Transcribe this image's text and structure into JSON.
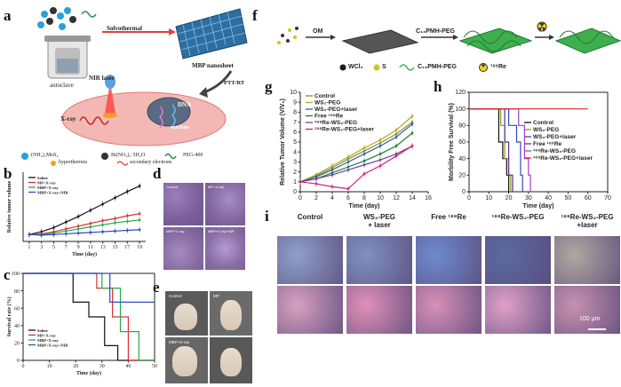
{
  "panels": {
    "a": "a",
    "b": "b",
    "c": "c",
    "d": "d",
    "e": "e",
    "f": "f",
    "g": "g",
    "h": "h",
    "i": "i"
  },
  "a": {
    "solvothermal": "Solvothermal",
    "autoclave": "autoclave",
    "mbp": "MBP nanosheet",
    "ptt": "PTT/RT",
    "nir": "NIR laser",
    "xray": "X-ray",
    "dna": "DNA",
    "nucleus": "nucleus",
    "leg1": "(NH₄)₂MoS₄",
    "leg2": "Bi(NO₃)₃·5H₂O",
    "leg3": "PEG-400",
    "leg4": "hyperthermia",
    "leg5": "secondary electrons"
  },
  "f": {
    "om": "OM",
    "reagent": "C₁₈PMH-PEG",
    "leg1": "WCl₆",
    "leg2": "S",
    "leg3": "C₁₈PMH-PEG",
    "leg4": "¹⁸⁸Re"
  },
  "d": {
    "q1": "Control",
    "q2": "MP+X-ray",
    "q3": "MBP+X-ray",
    "q4": "MBP+X-ray+NIR"
  },
  "e": {
    "q1": "Control",
    "q2": "MP",
    "q3": "MBP+X-ray"
  },
  "i": {
    "cols": [
      "Control",
      "WS₂-PEG\n+ laser",
      "Free ¹⁸⁸Re",
      "¹⁸⁸Re-WS₂-PEG",
      "¹⁸⁸Re-WS₂-PEG\n+laser"
    ],
    "scale1": "100 μm",
    "scale2": "100 μm"
  },
  "chart_data": [
    {
      "panel": "b",
      "type": "line",
      "xlabel": "Time (day)",
      "ylabel": "Relative tumor volume",
      "x": [
        1,
        3,
        5,
        7,
        9,
        11,
        13,
        15,
        17,
        19
      ],
      "xticks": [
        1,
        3,
        5,
        7,
        9,
        11,
        13,
        15,
        17,
        19
      ],
      "xlim": [
        0,
        20
      ],
      "ylim": [
        0,
        10
      ],
      "series": [
        {
          "name": "Saline",
          "color": "#111111",
          "values": [
            1,
            1.4,
            2.0,
            2.8,
            3.6,
            4.5,
            5.4,
            6.3,
            7.2,
            8.0
          ]
        },
        {
          "name": "MP+X-ray",
          "color": "#d93030",
          "values": [
            1,
            1.1,
            1.4,
            1.8,
            2.2,
            2.6,
            3.0,
            3.3,
            3.7,
            4.0
          ]
        },
        {
          "name": "MBP+X-ray",
          "color": "#2aa84a",
          "values": [
            1,
            1.0,
            1.2,
            1.5,
            1.8,
            2.1,
            2.4,
            2.7,
            2.9,
            3.1
          ]
        },
        {
          "name": "MBP+X-ray+NIR",
          "color": "#3048c0",
          "values": [
            1,
            0.9,
            1.0,
            1.1,
            1.2,
            1.3,
            1.4,
            1.5,
            1.6,
            1.7
          ]
        }
      ]
    },
    {
      "panel": "c",
      "type": "line",
      "xlabel": "Time (day)",
      "ylabel": "Survival rate (%)",
      "xticks": [
        0,
        10,
        20,
        30,
        40,
        50
      ],
      "yticks": [
        0,
        20,
        40,
        60,
        80,
        100
      ],
      "xlim": [
        0,
        50
      ],
      "ylim": [
        0,
        100
      ],
      "series": [
        {
          "name": "Saline",
          "color": "#111111",
          "x": [
            0,
            19,
            19,
            25,
            25,
            31,
            31,
            36,
            36,
            50
          ],
          "values": [
            100,
            100,
            67,
            67,
            50,
            50,
            17,
            17,
            0,
            0
          ]
        },
        {
          "name": "MP+X-ray",
          "color": "#d93030",
          "x": [
            0,
            28,
            28,
            34,
            34,
            40,
            40,
            50
          ],
          "values": [
            100,
            100,
            83,
            83,
            50,
            50,
            0,
            0
          ]
        },
        {
          "name": "MBP+X-ray",
          "color": "#2aa84a",
          "x": [
            0,
            30,
            30,
            37,
            37,
            44,
            44,
            50
          ],
          "values": [
            100,
            100,
            83,
            83,
            33,
            33,
            0,
            0
          ]
        },
        {
          "name": "MBP+X-ray+NIR",
          "color": "#3048c0",
          "x": [
            0,
            33,
            33,
            50
          ],
          "values": [
            100,
            100,
            67,
            67
          ]
        }
      ]
    },
    {
      "panel": "g",
      "type": "line",
      "xlabel": "Time (day)",
      "ylabel": "Relative Tumor Volume (V/V₀)",
      "x": [
        0,
        2,
        4,
        6,
        8,
        10,
        12,
        14
      ],
      "xticks": [
        0,
        2,
        4,
        6,
        8,
        10,
        12,
        14,
        16
      ],
      "yticks": [
        0,
        1,
        2,
        3,
        4,
        5,
        6,
        7,
        8,
        9,
        10
      ],
      "xlim": [
        0,
        16
      ],
      "ylim": [
        0,
        10
      ],
      "series": [
        {
          "name": "Control",
          "color": "#8c8c3a",
          "values": [
            1,
            1.6,
            2.4,
            3.3,
            4.1,
            4.9,
            5.8,
            7.0
          ]
        },
        {
          "name": "WS₂-PEG",
          "color": "#b0a820",
          "values": [
            1,
            1.7,
            2.6,
            3.5,
            4.4,
            5.2,
            6.2,
            7.6
          ]
        },
        {
          "name": "WS₂-PEG+laser",
          "color": "#2a5fa0",
          "values": [
            1,
            1.5,
            2.2,
            3.0,
            3.8,
            4.6,
            5.5,
            6.8
          ]
        },
        {
          "name": "Free ¹⁸⁸Re",
          "color": "#1e7a3a",
          "values": [
            1,
            1.3,
            1.9,
            2.5,
            3.1,
            3.8,
            4.6,
            5.9
          ]
        },
        {
          "name": "¹⁸⁸Re-WS₂-PEG",
          "color": "#7040a0",
          "values": [
            1,
            1.3,
            1.7,
            2.2,
            2.7,
            3.2,
            3.8,
            4.6
          ]
        },
        {
          "name": "¹⁸⁸Re-WS₂-PEG+laser",
          "color": "#d0207a",
          "values": [
            1,
            0.8,
            0.5,
            0.3,
            1.8,
            2.6,
            3.6,
            4.6
          ]
        }
      ]
    },
    {
      "panel": "h",
      "type": "line",
      "xlabel": "Time (day)",
      "ylabel": "Morbility Free Survival (%)",
      "xticks": [
        0,
        10,
        20,
        30,
        40,
        50,
        60,
        70
      ],
      "yticks": [
        0,
        20,
        40,
        60,
        80,
        100,
        120
      ],
      "xlim": [
        0,
        70
      ],
      "ylim": [
        0,
        120
      ],
      "series": [
        {
          "name": "Control",
          "color": "#111111",
          "x": [
            0,
            15,
            15,
            17,
            17,
            19,
            19,
            20,
            20
          ],
          "values": [
            100,
            100,
            60,
            60,
            40,
            40,
            20,
            20,
            0
          ]
        },
        {
          "name": "WS₂-PEG",
          "color": "#7aa020",
          "x": [
            0,
            16,
            16,
            18,
            18,
            20,
            20,
            21,
            21
          ],
          "values": [
            100,
            100,
            80,
            80,
            40,
            40,
            20,
            20,
            0
          ]
        },
        {
          "name": "WS₂-PEG+laser",
          "color": "#3048c0",
          "x": [
            0,
            20,
            20,
            24,
            24,
            26,
            26,
            27,
            27
          ],
          "values": [
            100,
            100,
            80,
            80,
            60,
            60,
            20,
            20,
            0
          ]
        },
        {
          "name": "Free ¹⁸⁸Re",
          "color": "#5a2f8c",
          "x": [
            0,
            18,
            18,
            20,
            20,
            22,
            22
          ],
          "values": [
            100,
            100,
            60,
            60,
            20,
            20,
            0
          ]
        },
        {
          "name": "¹⁸⁸Re-WS₂-PEG",
          "color": "#a040c0",
          "x": [
            0,
            25,
            25,
            28,
            28,
            30,
            30,
            31,
            31
          ],
          "values": [
            100,
            100,
            80,
            80,
            40,
            40,
            20,
            20,
            0
          ]
        },
        {
          "name": "¹⁸⁸Re-WS₂-PEG+laser",
          "color": "#e02020",
          "x": [
            0,
            60
          ],
          "values": [
            100,
            100
          ]
        }
      ]
    }
  ]
}
